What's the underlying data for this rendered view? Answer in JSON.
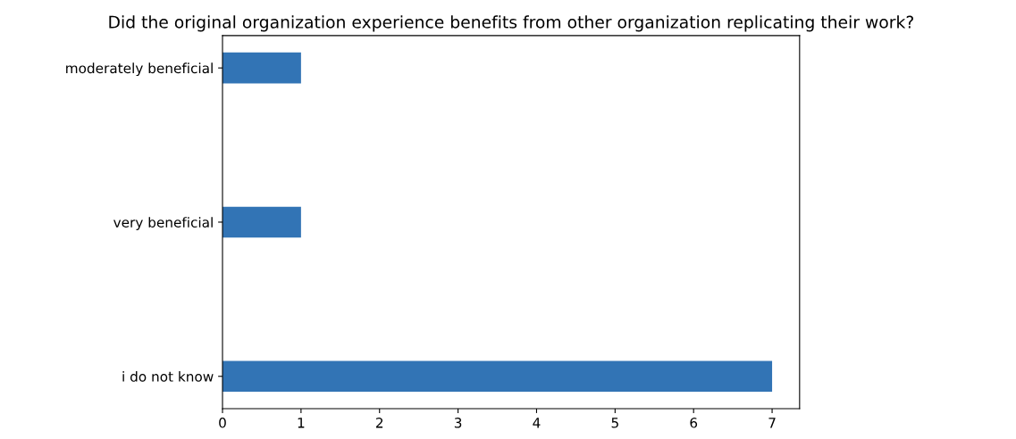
{
  "chart_data": {
    "type": "bar",
    "orientation": "horizontal",
    "title": "Did the original organization experience benefits from other organization replicating their work?",
    "categories": [
      "moderately beneficial",
      "very beneficial",
      "i do not know"
    ],
    "values": [
      1,
      1,
      7
    ],
    "color": "#3274b5",
    "xlim": [
      0,
      7.35
    ],
    "xticks": [
      0,
      1,
      2,
      3,
      4,
      5,
      6,
      7
    ],
    "grid": false,
    "legend": false
  }
}
